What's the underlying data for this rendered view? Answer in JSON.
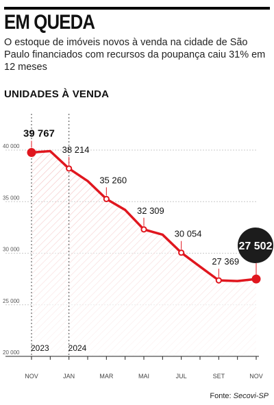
{
  "headline": "EM QUEDA",
  "dek": "O estoque de imóveis novos à venda na cidade de São Paulo financiados com recursos da poupança caiu 31% em 12 meses",
  "section_title": "UNIDADES À VENDA",
  "source": {
    "label": "Fonte:",
    "name": "Secovi-SP"
  },
  "colors": {
    "series": "#e0161e",
    "grid": "#c8c8c8",
    "text": "#1a1a1a",
    "callout": "#1c1c1c"
  },
  "chart_data": {
    "type": "area",
    "title": "UNIDADES À VENDA",
    "xlabel": "",
    "ylabel": "",
    "ylim": [
      20000,
      41000
    ],
    "y_ticks": [
      20000,
      25000,
      30000,
      35000,
      40000
    ],
    "y_tick_labels": [
      "20 000",
      "25 000",
      "30 000",
      "35 000",
      "40 000"
    ],
    "grid": true,
    "x": [
      "2023-11",
      "2023-12",
      "2024-01",
      "2024-02",
      "2024-03",
      "2024-04",
      "2024-05",
      "2024-06",
      "2024-07",
      "2024-08",
      "2024-09",
      "2024-10",
      "2024-11"
    ],
    "x_tick_labels": [
      "NOV",
      "",
      "JAN",
      "",
      "MAR",
      "",
      "MAI",
      "",
      "JUL",
      "",
      "SET",
      "",
      "NOV"
    ],
    "year_labels": [
      {
        "year": "2023",
        "month": "2023-11"
      },
      {
        "year": "2024",
        "month": "2024-01"
      }
    ],
    "series": [
      {
        "values": [
          39767,
          39900,
          38214,
          37000,
          35260,
          34200,
          32309,
          31800,
          30054,
          28700,
          27369,
          27300,
          27502
        ]
      }
    ],
    "data_labels": [
      {
        "index": 0,
        "text": "39 767"
      },
      {
        "index": 2,
        "text": "38 214"
      },
      {
        "index": 4,
        "text": "35 260"
      },
      {
        "index": 6,
        "text": "32 309"
      },
      {
        "index": 8,
        "text": "30 054"
      },
      {
        "index": 10,
        "text": "27 369"
      },
      {
        "index": 12,
        "text": "27 502",
        "highlight": true
      }
    ]
  }
}
